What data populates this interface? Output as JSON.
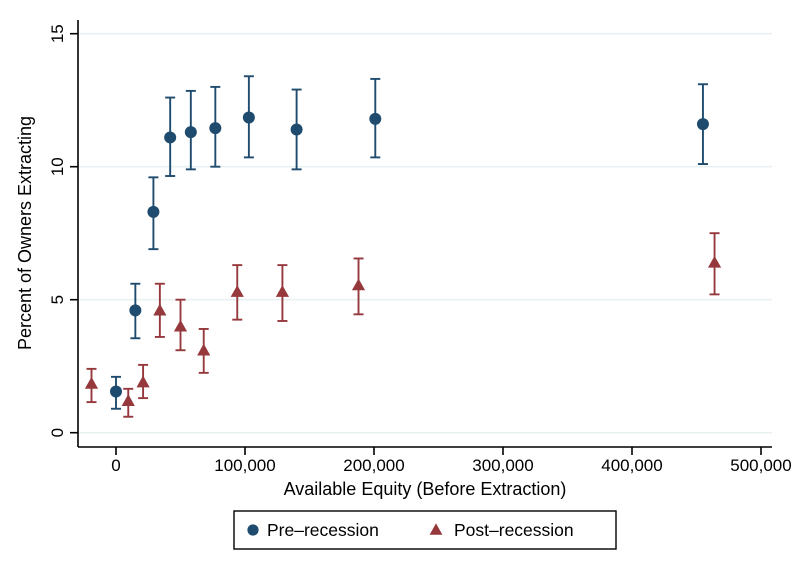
{
  "chart_data": {
    "type": "scatter",
    "title": "",
    "xlabel": "Available Equity (Before Extraction)",
    "ylabel": "Percent of Owners Extracting",
    "xlim": [
      -30000,
      530000
    ],
    "ylim": [
      0,
      15
    ],
    "grid": "horizontal-only",
    "gridline_color": "#e9f0f2",
    "axis_color": "#000000",
    "background_color": "#ffffff",
    "legend_position": "bottom-center-boxed",
    "x_ticks": [
      {
        "value": 0,
        "label": "0"
      },
      {
        "value": 100000,
        "label": "100,000"
      },
      {
        "value": 200000,
        "label": "200,000"
      },
      {
        "value": 300000,
        "label": "300,000"
      },
      {
        "value": 400000,
        "label": "400,000"
      },
      {
        "value": 500000,
        "label": "500,000"
      }
    ],
    "y_ticks": [
      {
        "value": 0,
        "label": "0"
      },
      {
        "value": 5,
        "label": "5"
      },
      {
        "value": 10,
        "label": "10"
      },
      {
        "value": 15,
        "label": "15"
      }
    ],
    "series": [
      {
        "name": "Pre–recession",
        "marker": "circle",
        "color": "#1f4b6e",
        "points": [
          {
            "x": 0,
            "y": 1.55,
            "lo": 0.9,
            "hi": 2.1
          },
          {
            "x": 15000,
            "y": 4.6,
            "lo": 3.55,
            "hi": 5.6
          },
          {
            "x": 29000,
            "y": 8.3,
            "lo": 6.9,
            "hi": 9.6
          },
          {
            "x": 42000,
            "y": 11.1,
            "lo": 9.65,
            "hi": 12.6
          },
          {
            "x": 58000,
            "y": 11.3,
            "lo": 9.9,
            "hi": 12.85
          },
          {
            "x": 77000,
            "y": 11.45,
            "lo": 10.0,
            "hi": 13.0
          },
          {
            "x": 103000,
            "y": 11.85,
            "lo": 10.35,
            "hi": 13.4
          },
          {
            "x": 140000,
            "y": 11.4,
            "lo": 9.9,
            "hi": 12.9
          },
          {
            "x": 201000,
            "y": 11.8,
            "lo": 10.35,
            "hi": 13.3
          },
          {
            "x": 455000,
            "y": 11.6,
            "lo": 10.1,
            "hi": 13.1
          }
        ]
      },
      {
        "name": "Post–recession",
        "marker": "triangle",
        "color": "#96393d",
        "points": [
          {
            "x": -19000,
            "y": 1.85,
            "lo": 1.15,
            "hi": 2.4
          },
          {
            "x": 9500,
            "y": 1.2,
            "lo": 0.6,
            "hi": 1.65
          },
          {
            "x": 21000,
            "y": 1.9,
            "lo": 1.3,
            "hi": 2.55
          },
          {
            "x": 34000,
            "y": 4.6,
            "lo": 3.6,
            "hi": 5.6
          },
          {
            "x": 50000,
            "y": 4.0,
            "lo": 3.1,
            "hi": 5.0
          },
          {
            "x": 68000,
            "y": 3.1,
            "lo": 2.25,
            "hi": 3.9
          },
          {
            "x": 94000,
            "y": 5.3,
            "lo": 4.25,
            "hi": 6.3
          },
          {
            "x": 129000,
            "y": 5.3,
            "lo": 4.2,
            "hi": 6.3
          },
          {
            "x": 188000,
            "y": 5.55,
            "lo": 4.45,
            "hi": 6.55
          },
          {
            "x": 464000,
            "y": 6.4,
            "lo": 5.2,
            "hi": 7.5
          }
        ]
      }
    ],
    "legend": {
      "items": [
        {
          "label": "Pre–recession",
          "marker": "circle",
          "color": "#1f4b6e"
        },
        {
          "label": "Post–recession",
          "marker": "triangle",
          "color": "#96393d"
        }
      ]
    }
  }
}
